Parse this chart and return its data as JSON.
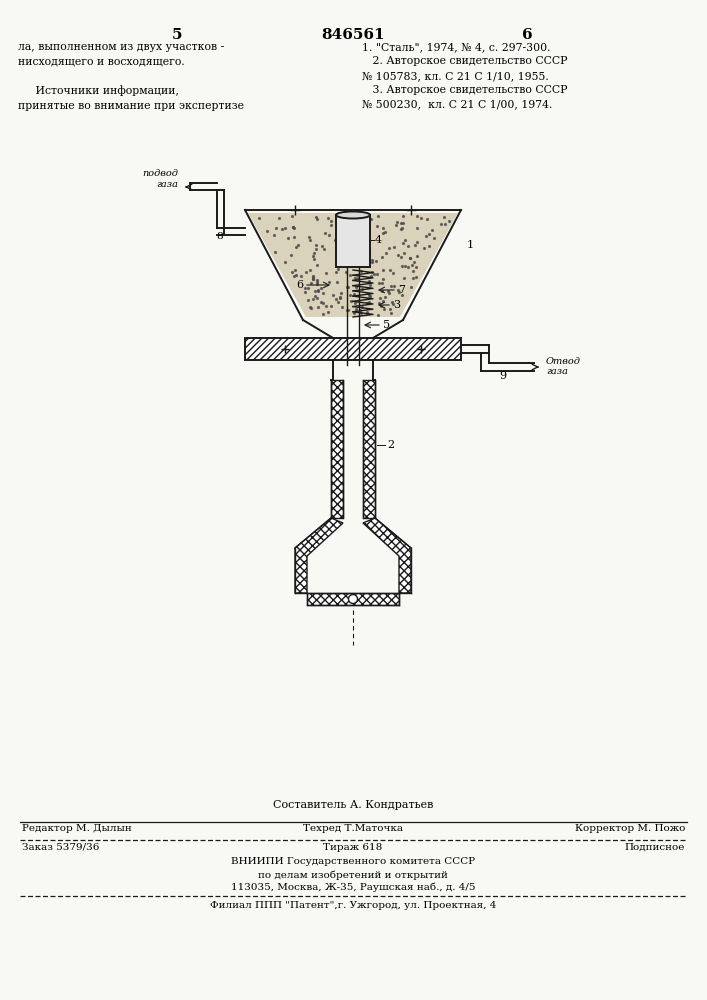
{
  "bg_color": "#f8f8f5",
  "page_number_left": "5",
  "page_number_center": "846561",
  "page_number_right": "6",
  "text_left_col": "ла, выполненном из двух участков -\nнисходящего и восходящего.\n\n     Источники информации,\nпринятые во внимание при экспертизе",
  "text_right_col": "1. \"Сталь\", 1974, № 4, с. 297-300.\n   2. Авторское свидетельство СССР\n№ 105783, кл. С 21 С 1/10, 1955.\n   3. Авторское свидетельство СССР\n№ 500230,  кл. С 21 С 1/00, 1974.",
  "label_podvod": "подвод\nгаза",
  "label_otvod": "Отвод\nгаза",
  "footer_editor": "Редактор М. Дылын",
  "footer_techred": "Техред Т.Маточка",
  "footer_corrector": "Корректор М. Пожо",
  "footer_order": "Заказ 5379/36",
  "footer_tirazh": "Тираж 618",
  "footer_podpisnoe": "Подписное",
  "footer_vnipi": "ВНИИПИ Государственного комитета СССР",
  "footer_vnipi2": "по делам изобретений и открытий",
  "footer_address": "113035, Москва, Ж-35, Раушская наб., д. 4/5",
  "footer_filial": "Филиал ППП \"Патент\",г. Ужгород, ул. Проектная, 4",
  "composer": "Составитель А. Кондратьев"
}
